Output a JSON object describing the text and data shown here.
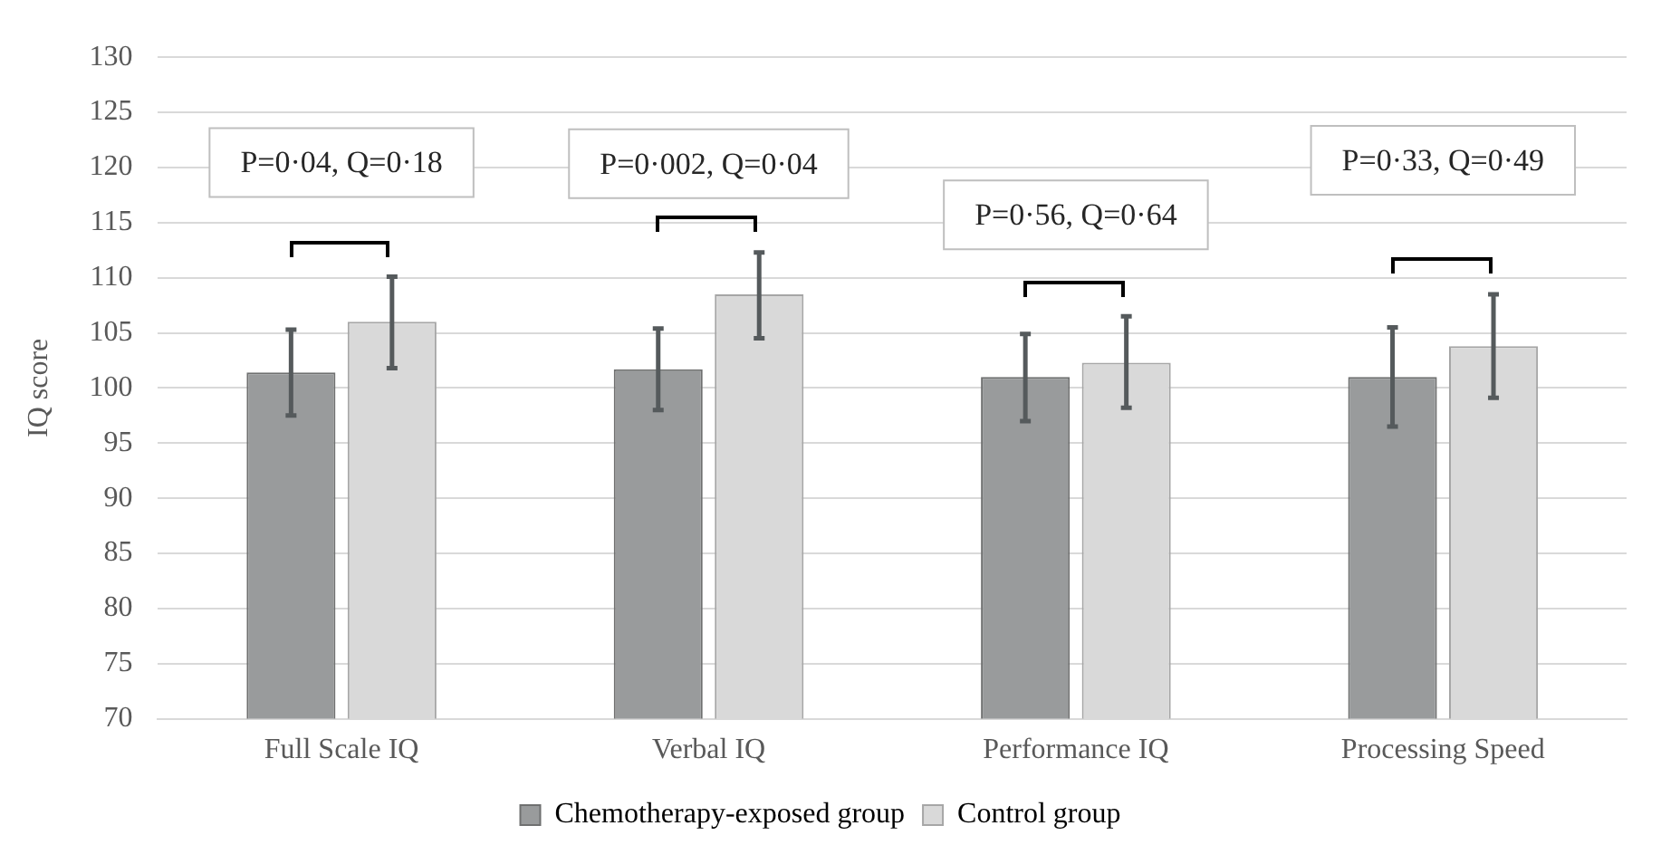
{
  "chart_data": {
    "type": "bar",
    "ylabel": "IQ score",
    "categories": [
      "Full Scale IQ",
      "Verbal IQ",
      "Performance IQ",
      "Processing Speed"
    ],
    "series": [
      {
        "name": "Chemotherapy-exposed group",
        "color": "#999b9c",
        "values": [
          101.4,
          101.7,
          101.0,
          101.0
        ],
        "errors": [
          [
            97.5,
            105.3
          ],
          [
            98.0,
            105.4
          ],
          [
            97.0,
            104.9
          ],
          [
            96.5,
            105.5
          ]
        ]
      },
      {
        "name": "Control group",
        "color": "#d9d9d9",
        "values": [
          106.0,
          108.5,
          102.3,
          103.8
        ],
        "errors": [
          [
            101.8,
            110.1
          ],
          [
            104.5,
            112.3
          ],
          [
            98.2,
            106.5
          ],
          [
            99.1,
            108.5
          ]
        ]
      }
    ],
    "ylim": [
      70,
      130
    ],
    "yticks": [
      70,
      75,
      80,
      85,
      90,
      95,
      100,
      105,
      110,
      115,
      120,
      125,
      130
    ],
    "grid": "y",
    "legend": "bottom",
    "annotations": [
      "P=0·04, Q=0·18",
      "P=0·002, Q=0·04",
      "P=0·56, Q=0·64",
      "P=0·33, Q=0·49"
    ]
  }
}
